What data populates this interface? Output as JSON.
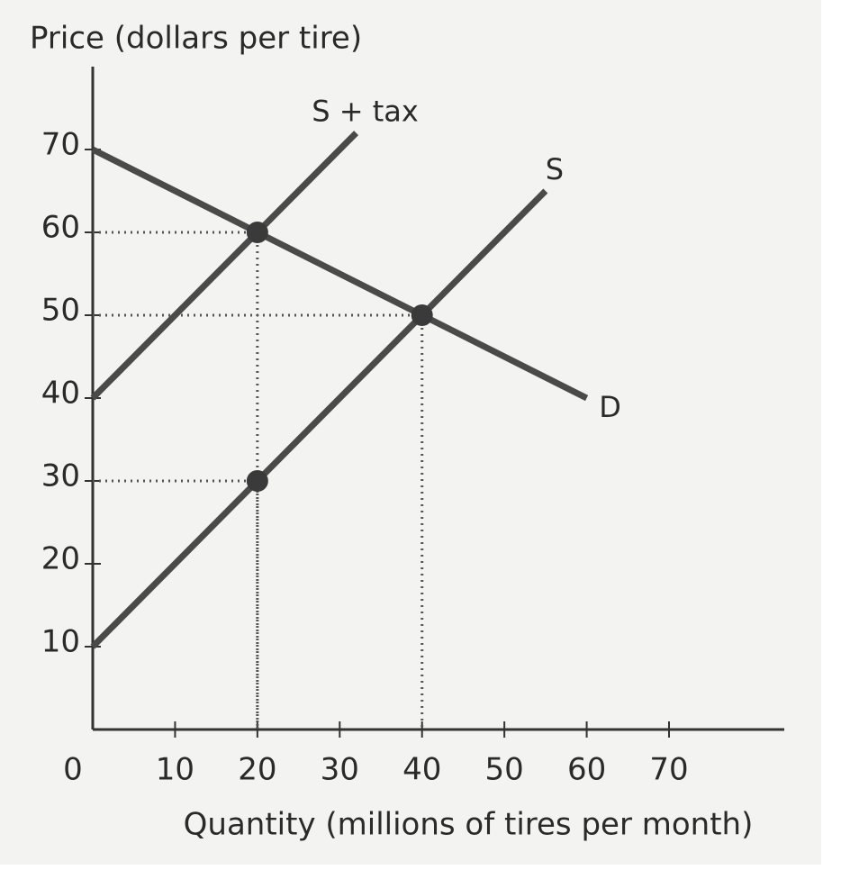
{
  "chart_data": {
    "type": "line",
    "y_label": "Price (dollars per tire)",
    "x_label": "Quantity (millions of tires per month)",
    "xlim": [
      0,
      84
    ],
    "ylim": [
      0,
      80
    ],
    "xticks": [
      0,
      10,
      20,
      30,
      40,
      50,
      60,
      70
    ],
    "yticks": [
      10,
      20,
      30,
      40,
      50,
      60,
      70
    ],
    "color": "#4a4a4a",
    "series": [
      {
        "name": "S + tax",
        "x": [
          0,
          20,
          32
        ],
        "values": [
          40,
          60,
          72
        ]
      },
      {
        "name": "S",
        "x": [
          0,
          20,
          40,
          55
        ],
        "values": [
          10,
          30,
          50,
          65
        ]
      },
      {
        "name": "D",
        "x": [
          0,
          20,
          40,
          60
        ],
        "values": [
          70,
          60,
          50,
          40
        ]
      }
    ],
    "points": {
      "x": [
        20,
        40,
        20
      ],
      "values": [
        60,
        50,
        30
      ]
    }
  }
}
